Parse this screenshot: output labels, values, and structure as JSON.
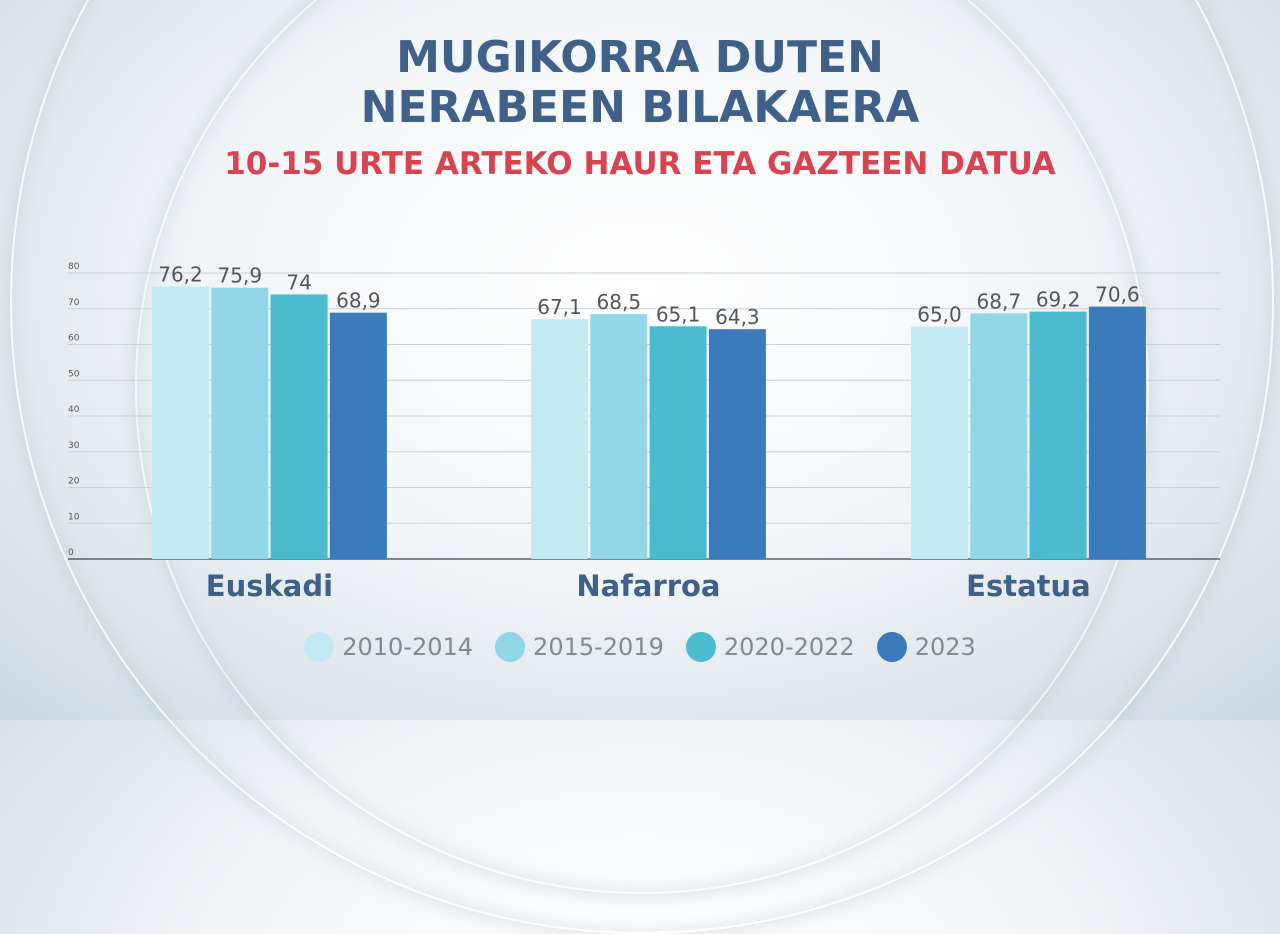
{
  "chart_data": {
    "type": "bar",
    "title": "MUGIKORRA DUTEN NERABEEN BILAKAERA",
    "title_lines": [
      "MUGIKORRA DUTEN",
      "NERABEEN BILAKAERA"
    ],
    "subtitle": "10-15 URTE ARTEKO HAUR ETA GAZTEEN DATUA",
    "categories": [
      "Euskadi",
      "Nafarroa",
      "Estatua"
    ],
    "series": [
      {
        "name": "2010-2014",
        "color": "#c3e9f3",
        "values": [
          76.2,
          67.1,
          65.0
        ],
        "labels": [
          "76,2",
          "67,1",
          "65,0"
        ]
      },
      {
        "name": "2015-2019",
        "color": "#92d7e7",
        "values": [
          75.9,
          68.5,
          68.7
        ],
        "labels": [
          "75,9",
          "68,5",
          "68,7"
        ]
      },
      {
        "name": "2020-2022",
        "color": "#4bbccf",
        "values": [
          74,
          65.1,
          69.2
        ],
        "labels": [
          "74",
          "65,1",
          "69,2"
        ]
      },
      {
        "name": "2023",
        "color": "#3a7bbb",
        "values": [
          68.9,
          64.3,
          70.6
        ],
        "labels": [
          "68,9",
          "64,3",
          "70,6"
        ]
      }
    ],
    "ylim": [
      0,
      80
    ],
    "yticks": [
      0,
      10,
      20,
      30,
      40,
      50,
      60,
      70,
      80
    ],
    "grid": true,
    "legend_position": "bottom",
    "xlabel": "",
    "ylabel": ""
  }
}
